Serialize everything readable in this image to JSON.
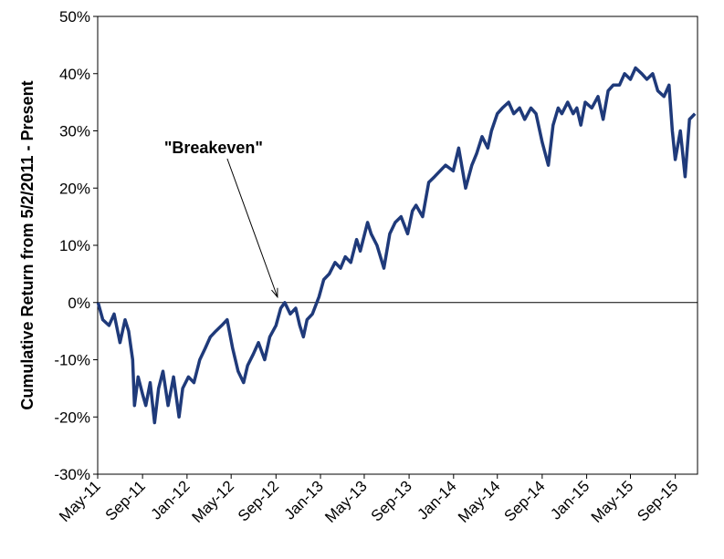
{
  "chart_data": {
    "type": "line",
    "title": "",
    "xlabel": "",
    "ylabel": "Cumulative Return from 5/2/2011 - Present",
    "ylim": [
      -30,
      50
    ],
    "y_ticks": [
      50,
      40,
      30,
      20,
      10,
      0,
      -10,
      -20,
      -30
    ],
    "y_tick_labels": [
      "50%",
      "40%",
      "30%",
      "20%",
      "10%",
      "0%",
      "-10%",
      "-20%",
      "-30%"
    ],
    "x_tick_labels": [
      "May-11",
      "Sep-11",
      "Jan-12",
      "May-12",
      "Sep-12",
      "Jan-13",
      "May-13",
      "Sep-13",
      "Jan-14",
      "May-14",
      "Sep-14",
      "Jan-15",
      "May-15",
      "Sep-15"
    ],
    "x_tick_dates": [
      "2011-05-01",
      "2011-09-01",
      "2012-01-01",
      "2012-05-01",
      "2012-09-01",
      "2013-01-01",
      "2013-05-01",
      "2013-09-01",
      "2014-01-01",
      "2014-05-01",
      "2014-09-01",
      "2015-01-01",
      "2015-05-01",
      "2015-09-01"
    ],
    "xlim": [
      "2011-05-01",
      "2015-11-01"
    ],
    "grid": false,
    "legend": "none",
    "line_color": "#1f3a7a",
    "annotation": {
      "text": "\"Breakeven\"",
      "x": "2012-09-05",
      "y": 0
    },
    "series": [
      {
        "x": [
          "2011-05-02",
          "2011-05-15",
          "2011-06-01",
          "2011-06-15",
          "2011-07-01",
          "2011-07-15",
          "2011-07-25",
          "2011-08-05",
          "2011-08-10",
          "2011-08-20",
          "2011-09-01",
          "2011-09-10",
          "2011-09-22",
          "2011-10-04",
          "2011-10-15",
          "2011-10-27",
          "2011-11-10",
          "2011-11-25",
          "2011-12-10",
          "2011-12-20",
          "2012-01-05",
          "2012-01-20",
          "2012-02-05",
          "2012-02-20",
          "2012-03-05",
          "2012-03-20",
          "2012-04-05",
          "2012-04-20",
          "2012-05-05",
          "2012-05-20",
          "2012-06-04",
          "2012-06-15",
          "2012-07-01",
          "2012-07-15",
          "2012-08-01",
          "2012-08-15",
          "2012-09-01",
          "2012-09-14",
          "2012-09-25",
          "2012-10-10",
          "2012-10-25",
          "2012-11-05",
          "2012-11-15",
          "2012-11-25",
          "2012-12-10",
          "2012-12-28",
          "2013-01-10",
          "2013-01-25",
          "2013-02-10",
          "2013-02-25",
          "2013-03-10",
          "2013-03-25",
          "2013-04-10",
          "2013-04-20",
          "2013-05-10",
          "2013-05-20",
          "2013-06-05",
          "2013-06-24",
          "2013-07-10",
          "2013-07-25",
          "2013-08-10",
          "2013-08-28",
          "2013-09-10",
          "2013-09-20",
          "2013-10-08",
          "2013-10-25",
          "2013-11-10",
          "2013-11-25",
          "2013-12-10",
          "2013-12-31",
          "2014-01-15",
          "2014-02-03",
          "2014-02-20",
          "2014-03-05",
          "2014-03-20",
          "2014-04-05",
          "2014-04-15",
          "2014-05-01",
          "2014-05-15",
          "2014-06-01",
          "2014-06-15",
          "2014-07-01",
          "2014-07-15",
          "2014-08-01",
          "2014-08-15",
          "2014-09-01",
          "2014-09-18",
          "2014-10-01",
          "2014-10-15",
          "2014-10-25",
          "2014-11-10",
          "2014-11-25",
          "2014-12-05",
          "2014-12-16",
          "2014-12-28",
          "2015-01-15",
          "2015-02-01",
          "2015-02-15",
          "2015-03-01",
          "2015-03-15",
          "2015-04-01",
          "2015-04-15",
          "2015-05-01",
          "2015-05-15",
          "2015-06-01",
          "2015-06-15",
          "2015-07-01",
          "2015-07-15",
          "2015-08-01",
          "2015-08-15",
          "2015-08-24",
          "2015-09-01",
          "2015-09-15",
          "2015-09-28",
          "2015-10-10",
          "2015-10-25"
        ],
        "values": [
          0,
          -3,
          -4,
          -2,
          -7,
          -3,
          -5,
          -10,
          -18,
          -13,
          -16,
          -18,
          -14,
          -21,
          -15,
          -12,
          -18,
          -13,
          -20,
          -15,
          -13,
          -14,
          -10,
          -8,
          -6,
          -5,
          -4,
          -3,
          -8,
          -12,
          -14,
          -11,
          -9,
          -7,
          -10,
          -6,
          -4,
          -1,
          0,
          -2,
          -1,
          -4,
          -6,
          -3,
          -2,
          1,
          4,
          5,
          7,
          6,
          8,
          7,
          11,
          9,
          14,
          12,
          10,
          6,
          12,
          14,
          15,
          12,
          16,
          17,
          15,
          21,
          22,
          23,
          24,
          23,
          27,
          20,
          24,
          26,
          29,
          27,
          30,
          33,
          34,
          35,
          33,
          34,
          32,
          34,
          33,
          28,
          24,
          31,
          34,
          33,
          35,
          33,
          34,
          31,
          35,
          34,
          36,
          32,
          37,
          38,
          38,
          40,
          39,
          41,
          40,
          39,
          40,
          37,
          36,
          38,
          30,
          25,
          30,
          22,
          32,
          33
        ]
      }
    ]
  }
}
